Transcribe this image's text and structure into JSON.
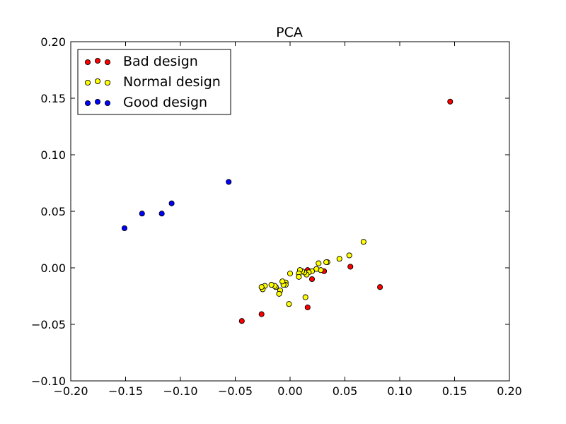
{
  "chart_data": {
    "type": "scatter",
    "title": "PCA",
    "xlabel": "",
    "ylabel": "",
    "xlim": [
      -0.2,
      0.2
    ],
    "ylim": [
      -0.1,
      0.2
    ],
    "x_ticks": [
      -0.2,
      -0.15,
      -0.1,
      -0.05,
      0.0,
      0.05,
      0.1,
      0.15,
      0.2
    ],
    "x_tick_labels": [
      "−0.20",
      "−0.15",
      "−0.10",
      "−0.05",
      "0.00",
      "0.05",
      "0.10",
      "0.15",
      "0.20"
    ],
    "y_ticks": [
      -0.1,
      -0.05,
      0.0,
      0.05,
      0.1,
      0.15,
      0.2
    ],
    "y_tick_labels": [
      "−0.10",
      "−0.05",
      "0.00",
      "0.05",
      "0.10",
      "0.15",
      "0.20"
    ],
    "grid": false,
    "legend_position": "top-left",
    "series": [
      {
        "name": "Bad design",
        "color": "#ff0000",
        "points": [
          [
            0.146,
            0.147
          ],
          [
            0.082,
            -0.017
          ],
          [
            0.055,
            0.001
          ],
          [
            0.031,
            -0.003
          ],
          [
            0.02,
            -0.01
          ],
          [
            0.016,
            -0.002
          ],
          [
            0.016,
            -0.035
          ],
          [
            -0.026,
            -0.041
          ],
          [
            -0.044,
            -0.047
          ]
        ]
      },
      {
        "name": "Normal design",
        "color": "#ffff00",
        "points": [
          [
            0.067,
            0.023
          ],
          [
            0.054,
            0.011
          ],
          [
            0.045,
            0.008
          ],
          [
            0.034,
            0.005
          ],
          [
            0.033,
            0.005
          ],
          [
            0.028,
            -0.002
          ],
          [
            0.026,
            0.004
          ],
          [
            0.024,
            -0.001
          ],
          [
            0.02,
            -0.003
          ],
          [
            0.017,
            -0.004
          ],
          [
            0.015,
            -0.006
          ],
          [
            0.013,
            -0.004
          ],
          [
            0.011,
            -0.003
          ],
          [
            0.009,
            -0.002
          ],
          [
            0.008,
            -0.005
          ],
          [
            0.008,
            -0.008
          ],
          [
            0.014,
            -0.026
          ],
          [
            0.0,
            -0.005
          ],
          [
            -0.001,
            -0.032
          ],
          [
            -0.004,
            -0.013
          ],
          [
            -0.004,
            -0.015
          ],
          [
            -0.006,
            -0.015
          ],
          [
            -0.007,
            -0.012
          ],
          [
            -0.009,
            -0.02
          ],
          [
            -0.01,
            -0.023
          ],
          [
            -0.013,
            -0.017
          ],
          [
            -0.014,
            -0.016
          ],
          [
            -0.017,
            -0.015
          ],
          [
            -0.023,
            -0.016
          ],
          [
            -0.025,
            -0.019
          ],
          [
            -0.026,
            -0.017
          ]
        ]
      },
      {
        "name": "Good design",
        "color": "#0000ff",
        "points": [
          [
            -0.056,
            0.076
          ],
          [
            -0.108,
            0.057
          ],
          [
            -0.117,
            0.048
          ],
          [
            -0.135,
            0.048
          ],
          [
            -0.151,
            0.035
          ]
        ]
      }
    ]
  }
}
